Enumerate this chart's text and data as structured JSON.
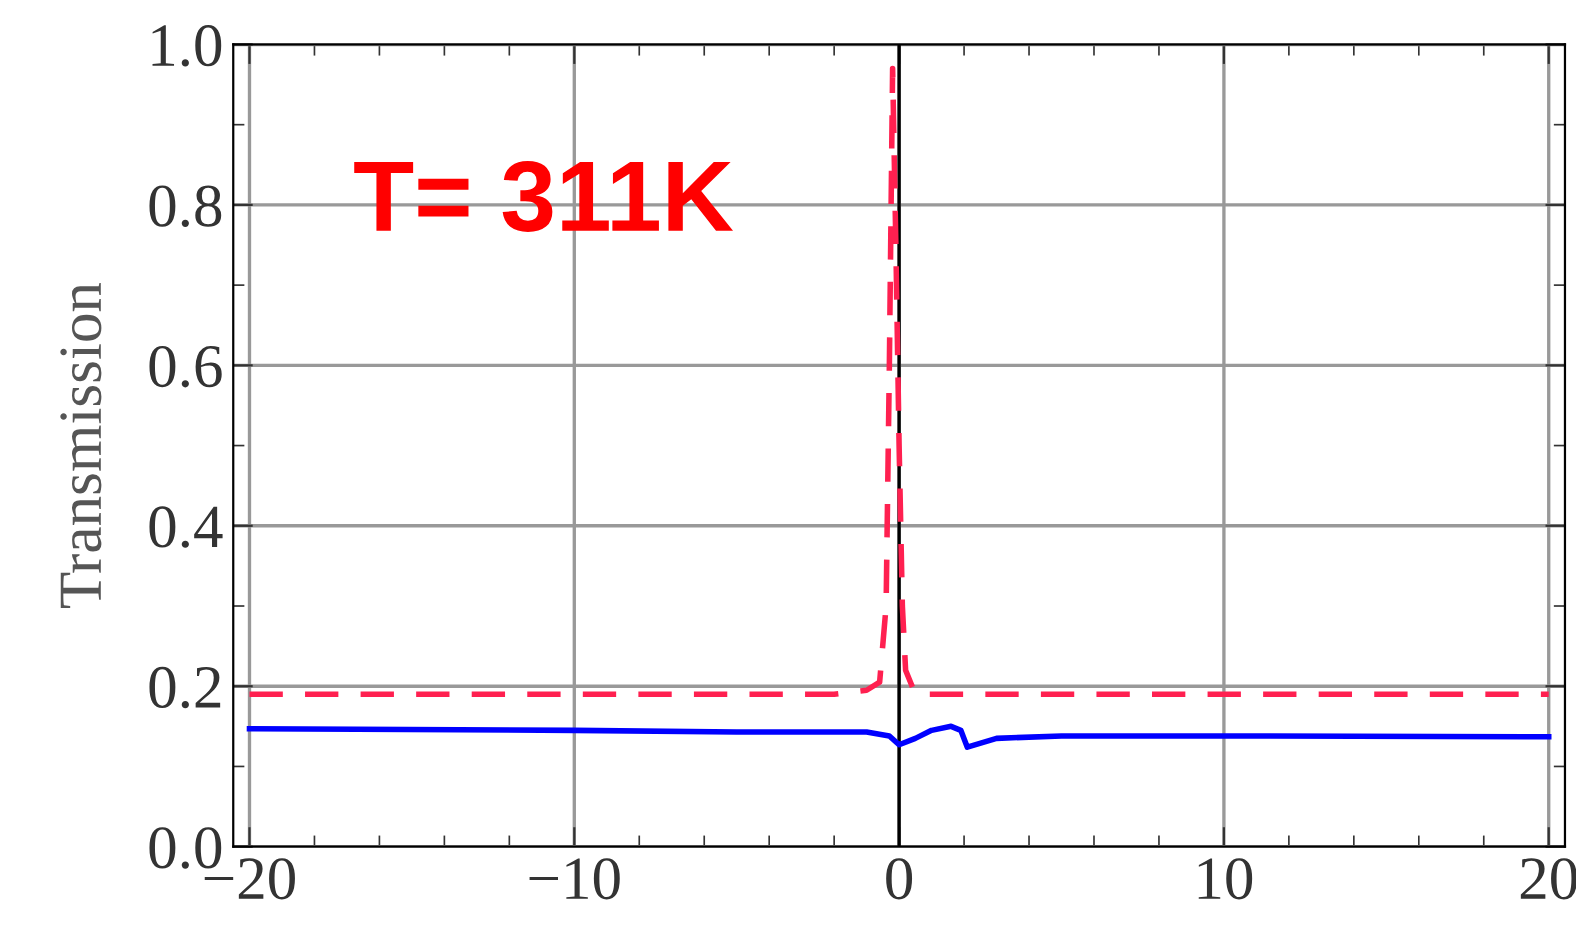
{
  "chart_data": {
    "type": "line",
    "ylabel": "Transmission",
    "annotations": [
      "T= 311K"
    ],
    "series": [
      {
        "color": "#0000ff",
        "line_style": "solid",
        "x": [
          -20,
          -10,
          -5,
          -1,
          -0.3,
          0,
          0.5,
          1,
          1.6,
          1.9,
          2.1,
          3,
          5,
          10,
          20
        ],
        "values": [
          0.147,
          0.145,
          0.143,
          0.143,
          0.138,
          0.127,
          0.135,
          0.145,
          0.15,
          0.145,
          0.124,
          0.135,
          0.138,
          0.138,
          0.137
        ]
      },
      {
        "color": "#ff2050",
        "line_style": "dashed",
        "x": [
          -20,
          -2,
          -1,
          -0.6,
          -0.4,
          -0.3,
          -0.2,
          -0.1,
          0,
          0.1,
          0.2,
          0.5,
          20
        ],
        "values": [
          0.19,
          0.19,
          0.195,
          0.205,
          0.3,
          0.6,
          0.97,
          0.75,
          0.5,
          0.3,
          0.22,
          0.19,
          0.19
        ]
      }
    ],
    "xlim": [
      -20.5,
      20.5
    ],
    "ylim": [
      0,
      1
    ],
    "xticks": [
      {
        "value": -20,
        "label": "−20"
      },
      {
        "value": -10,
        "label": "−10"
      },
      0,
      10,
      20
    ],
    "yticks": [
      {
        "value": 0,
        "label": "0.0"
      },
      0.2,
      0.4,
      0.6,
      0.8,
      {
        "value": 1,
        "label": "1.0"
      }
    ],
    "ref_lines": [
      {
        "axis": "x",
        "value": 0,
        "color": "#000000"
      }
    ],
    "grid": true
  }
}
